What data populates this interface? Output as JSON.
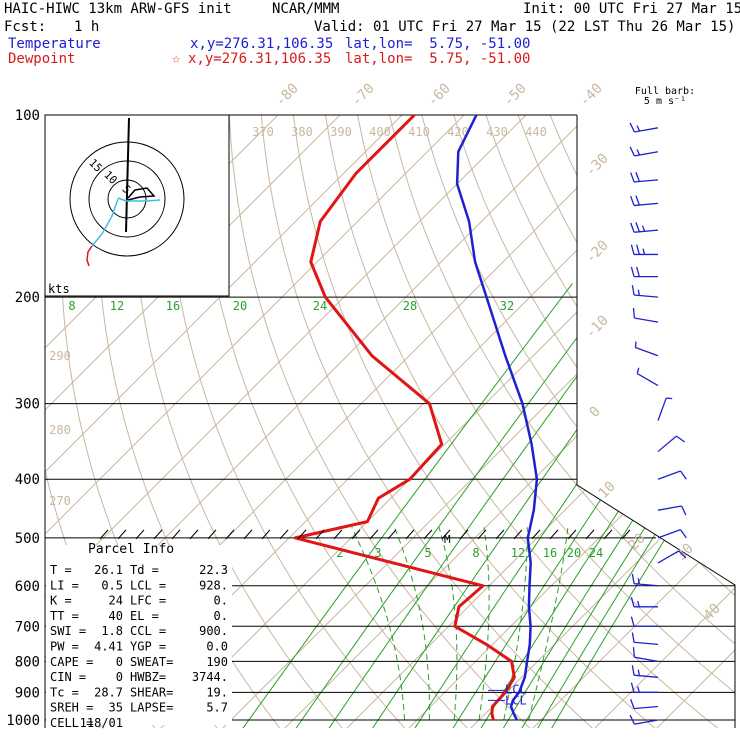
{
  "header": {
    "model": "HAIC-HIWC 13km ARW-GFS init",
    "center": "NCAR/MMM",
    "init": "Init: 00 UTC Fri 27 Mar 15",
    "fcst_label": "Fcst:",
    "fcst_value": "1 h",
    "valid": "Valid: 01 UTC Fri 27 Mar 15 (22 LST Thu 26 Mar 15)",
    "temp_label": "Temperature",
    "temp_xy": "x,y=276.31,106.35",
    "temp_latlon": "lat,lon=  5.75, -51.00",
    "dew_label": "Dewpoint",
    "dew_xy": "x,y=276.31,106.35",
    "dew_latlon": "lat,lon=  5.75, -51.00"
  },
  "colors": {
    "temperature": "#1f20d0",
    "dewpoint": "#e01515",
    "mixing_ratio": "#2ca02c",
    "isotherm": "#c8b8a0",
    "grid": "#000000"
  },
  "wind_legend": {
    "title": "Full barb:",
    "unit": "5 m s⁻¹"
  },
  "hodograph": {
    "unit": "kts",
    "rings": [
      "15",
      "10",
      "5"
    ]
  },
  "parcel": {
    "title": "Parcel Info",
    "rows": [
      [
        "T    =",
        "26.1",
        "Td   =",
        "22.3"
      ],
      [
        "LI   =",
        "0.5",
        "LCL  =",
        "928."
      ],
      [
        "K    =",
        "24",
        "LFC  =",
        "0."
      ],
      [
        "TT   =",
        "40",
        "EL   =",
        "0."
      ],
      [
        "SWI  =",
        "1.8",
        "CCL  =",
        "900."
      ],
      [
        "PW   =",
        "4.41",
        "YGP  =",
        "0.0"
      ],
      [
        "CAPE =",
        "0",
        "SWEAT=",
        "190"
      ],
      [
        "CIN  =",
        "0",
        "HWBZ=",
        "3744."
      ],
      [
        "Tc   =",
        "28.7",
        "SHEAR=",
        "19."
      ],
      [
        "SREH =",
        "35",
        "LAPSE=",
        "5.7"
      ],
      [
        "CELL =",
        "118/01",
        "",
        ""
      ]
    ],
    "lcl_label": "LCL"
  },
  "chart_data": {
    "type": "skew-t",
    "pressure_levels": [
      "100",
      "200",
      "300",
      "400",
      "500",
      "600",
      "700",
      "800",
      "900",
      "1000"
    ],
    "isotherm_labels": [
      "-80",
      "-70",
      "-60",
      "-50",
      "-40",
      "-30",
      "-20",
      "-10",
      "0",
      "10",
      "20",
      "30",
      "40"
    ],
    "theta_labels": [
      "370",
      "380",
      "390",
      "400",
      "410",
      "420",
      "430",
      "440"
    ],
    "theta_left_labels": [
      "290",
      "280",
      "270"
    ],
    "mixing_ratio_upper_labels": [
      "8",
      "12",
      "16",
      "20",
      "24",
      "28",
      "32"
    ],
    "mixing_ratio_lower_labels": [
      "2",
      "3",
      "5",
      "8",
      "12",
      "16",
      "20",
      "24"
    ],
    "series": [
      {
        "name": "Temperature",
        "points": [
          [
            1000,
            26.1
          ],
          [
            975,
            24.5
          ],
          [
            950,
            23.0
          ],
          [
            928,
            22.3
          ],
          [
            900,
            22.0
          ],
          [
            850,
            20.5
          ],
          [
            800,
            18.3
          ],
          [
            750,
            16.0
          ],
          [
            700,
            13.2
          ],
          [
            650,
            9.8
          ],
          [
            600,
            6.5
          ],
          [
            550,
            3.0
          ],
          [
            500,
            -1.5
          ],
          [
            450,
            -5.0
          ],
          [
            400,
            -9.5
          ],
          [
            350,
            -16.0
          ],
          [
            300,
            -24.0
          ],
          [
            250,
            -34.5
          ],
          [
            200,
            -47.0
          ],
          [
            175,
            -54.5
          ],
          [
            150,
            -62.0
          ],
          [
            130,
            -70.0
          ],
          [
            115,
            -75.0
          ],
          [
            100,
            -78.0
          ]
        ]
      },
      {
        "name": "Dewpoint",
        "points": [
          [
            1000,
            22.3
          ],
          [
            975,
            21.0
          ],
          [
            950,
            20.0
          ],
          [
            900,
            19.8
          ],
          [
            850,
            18.8
          ],
          [
            800,
            15.8
          ],
          [
            750,
            9.0
          ],
          [
            700,
            1.0
          ],
          [
            650,
            -1.5
          ],
          [
            600,
            -1.0
          ],
          [
            500,
            -39.0
          ],
          [
            470,
            -30.0
          ],
          [
            430,
            -32.0
          ],
          [
            400,
            -30.0
          ],
          [
            350,
            -30.5
          ],
          [
            300,
            -39.0
          ],
          [
            250,
            -56.0
          ],
          [
            200,
            -73.0
          ],
          [
            175,
            -81.0
          ],
          [
            150,
            -86.0
          ],
          [
            125,
            -88.0
          ],
          [
            100,
            -88.0
          ]
        ]
      }
    ],
    "wind_profile": [
      {
        "p": 105,
        "spd": 15,
        "dir": 80
      },
      {
        "p": 115,
        "spd": 15,
        "dir": 80
      },
      {
        "p": 128,
        "spd": 20,
        "dir": 85
      },
      {
        "p": 140,
        "spd": 20,
        "dir": 85
      },
      {
        "p": 155,
        "spd": 25,
        "dir": 85
      },
      {
        "p": 170,
        "spd": 25,
        "dir": 90
      },
      {
        "p": 185,
        "spd": 20,
        "dir": 90
      },
      {
        "p": 200,
        "spd": 15,
        "dir": 95
      },
      {
        "p": 220,
        "spd": 10,
        "dir": 100
      },
      {
        "p": 250,
        "spd": 5,
        "dir": 110
      },
      {
        "p": 280,
        "spd": 5,
        "dir": 120
      },
      {
        "p": 320,
        "spd": 5,
        "dir": 200
      },
      {
        "p": 360,
        "spd": 10,
        "dir": 230
      },
      {
        "p": 400,
        "spd": 10,
        "dir": 250
      },
      {
        "p": 450,
        "spd": 10,
        "dir": 260
      },
      {
        "p": 500,
        "spd": 10,
        "dir": 250
      },
      {
        "p": 550,
        "spd": 10,
        "dir": 240
      },
      {
        "p": 600,
        "spd": 15,
        "dir": 95
      },
      {
        "p": 650,
        "spd": 15,
        "dir": 90
      },
      {
        "p": 700,
        "spd": 10,
        "dir": 90
      },
      {
        "p": 750,
        "spd": 10,
        "dir": 95
      },
      {
        "p": 800,
        "spd": 10,
        "dir": 100
      },
      {
        "p": 850,
        "spd": 15,
        "dir": 95
      },
      {
        "p": 900,
        "spd": 15,
        "dir": 90
      },
      {
        "p": 950,
        "spd": 10,
        "dir": 85
      },
      {
        "p": 1000,
        "spd": 10,
        "dir": 80
      }
    ]
  }
}
